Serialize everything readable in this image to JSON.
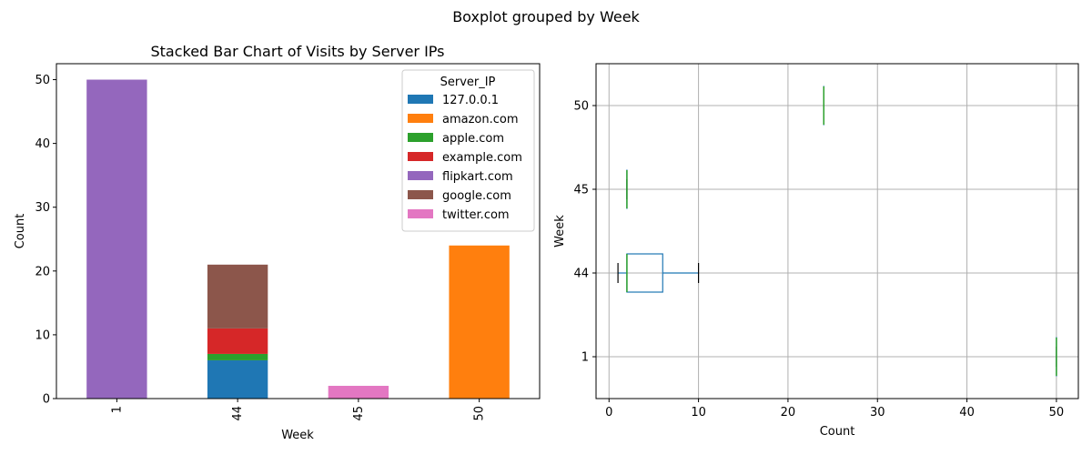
{
  "figure_title": "Boxplot grouped by Week",
  "chart_data": [
    {
      "type": "bar",
      "stacked": true,
      "title": "Stacked Bar Chart of Visits by Server IPs",
      "xlabel": "Week",
      "ylabel": "Count",
      "categories": [
        "1",
        "44",
        "45",
        "50"
      ],
      "ylim": [
        0,
        52.5
      ],
      "yticks": [
        0,
        10,
        20,
        30,
        40,
        50
      ],
      "legend_title": "Server_IP",
      "legend_position": "top-right",
      "series": [
        {
          "name": "127.0.0.1",
          "color": "#1f77b4",
          "values": [
            0,
            6,
            0,
            0
          ]
        },
        {
          "name": "amazon.com",
          "color": "#ff7f0e",
          "values": [
            0,
            0,
            0,
            24
          ]
        },
        {
          "name": "apple.com",
          "color": "#2ca02c",
          "values": [
            0,
            1,
            0,
            0
          ]
        },
        {
          "name": "example.com",
          "color": "#d62728",
          "values": [
            0,
            4,
            0,
            0
          ]
        },
        {
          "name": "flipkart.com",
          "color": "#9467bd",
          "values": [
            50,
            0,
            0,
            0
          ]
        },
        {
          "name": "google.com",
          "color": "#8c564b",
          "values": [
            0,
            10,
            0,
            0
          ]
        },
        {
          "name": "twitter.com",
          "color": "#e377c2",
          "values": [
            0,
            0,
            2,
            0
          ]
        }
      ]
    },
    {
      "type": "box",
      "orientation": "horizontal",
      "xlabel": "Count",
      "ylabel": "Week",
      "xlim": [
        -1.45,
        52.45
      ],
      "xticks": [
        0,
        10,
        20,
        30,
        40,
        50
      ],
      "grid": true,
      "categories": [
        "1",
        "44",
        "45",
        "50"
      ],
      "boxes": [
        {
          "week": "1",
          "min": 50,
          "q1": 50,
          "median": 50,
          "q3": 50,
          "max": 50
        },
        {
          "week": "44",
          "min": 1,
          "q1": 2,
          "median": 2,
          "q3": 6,
          "max": 10
        },
        {
          "week": "45",
          "min": 2,
          "q1": 2,
          "median": 2,
          "q3": 2,
          "max": 2
        },
        {
          "week": "50",
          "min": 24,
          "q1": 24,
          "median": 24,
          "q3": 24,
          "max": 24
        }
      ],
      "colors": {
        "box": "#1f77b4",
        "median": "#2ca02c",
        "cap": "#000000",
        "grid": "#b0b0b0"
      }
    }
  ]
}
